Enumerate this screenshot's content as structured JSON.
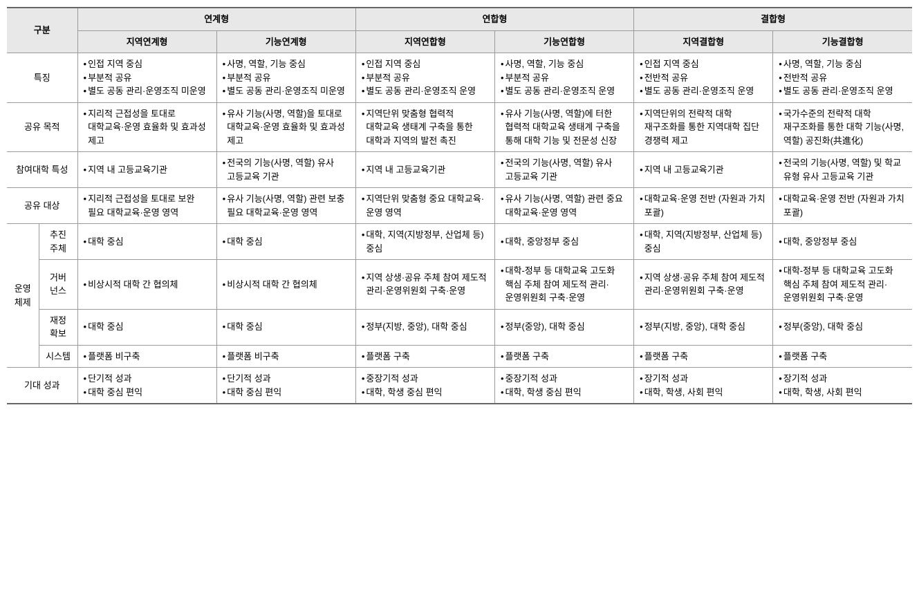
{
  "header": {
    "gubun": "구분",
    "group1": "연계형",
    "group2": "연합형",
    "group3": "결합형",
    "sub1": "지역연계형",
    "sub2": "기능연계형",
    "sub3": "지역연합형",
    "sub4": "기능연합형",
    "sub5": "지역결합형",
    "sub6": "기능결합형"
  },
  "rowLabels": {
    "r1": "특징",
    "r2": "공유 목적",
    "r3": "참여대학 특성",
    "r4": "공유 대상",
    "r5g": "운영\n체제",
    "r5a": "추진\n주체",
    "r5b": "거버\n넌스",
    "r5c": "재정\n확보",
    "r5d": "시스템",
    "r6": "기대 성과"
  },
  "cells": {
    "r1c1": [
      "인접 지역 중심",
      "부분적 공유",
      "별도 공동 관리·운영조직 미운영"
    ],
    "r1c2": [
      "사명, 역할, 기능 중심",
      "부분적 공유",
      "별도 공동 관리·운영조직 미운영"
    ],
    "r1c3": [
      "인접 지역 중심",
      "부분적 공유",
      "별도 공동 관리·운영조직 운영"
    ],
    "r1c4": [
      "사명, 역할, 기능 중심",
      "부분적 공유",
      "별도 공동 관리·운영조직 운영"
    ],
    "r1c5": [
      "인접 지역 중심",
      "전반적 공유",
      "별도 공동 관리·운영조직 운영"
    ],
    "r1c6": [
      "사명, 역할, 기능 중심",
      "전반적 공유",
      "별도 공동 관리·운영조직 운영"
    ],
    "r2c1": [
      "지리적 근접성을 토대로 대학교육·운영 효율화 및 효과성 제고"
    ],
    "r2c2": [
      "유사 기능(사명, 역할)을 토대로 대학교육·운영 효율화 및 효과성 제고"
    ],
    "r2c3": [
      "지역단위 맞춤형 협력적 대학교육 생태계 구축을 통한 대학과 지역의 발전 촉진"
    ],
    "r2c4": [
      "유사 기능(사명, 역할)에 터한 협력적 대학교육 생태계 구축을 통해 대학 기능 및 전문성 신장"
    ],
    "r2c5": [
      "지역단위의 전략적 대학 재구조화를 통한 지역대학 집단 경쟁력 제고"
    ],
    "r2c6": [
      "국가수준의 전략적 대학 재구조화를 통한 대학 기능(사명, 역할) 공진화(共進化)"
    ],
    "r3c1": [
      "지역 내 고등교육기관"
    ],
    "r3c2": [
      "전국의 기능(사명, 역할) 유사 고등교육 기관"
    ],
    "r3c3": [
      "지역 내 고등교육기관"
    ],
    "r3c4": [
      "전국의 기능(사명, 역할) 유사 고등교육 기관"
    ],
    "r3c5": [
      "지역 내 고등교육기관"
    ],
    "r3c6": [
      "전국의 기능(사명, 역할) 및 학교 유형 유사 고등교육 기관"
    ],
    "r4c1": [
      "지리적 근접성을 토대로 보완 필요 대학교육·운영 영역"
    ],
    "r4c2": [
      "유사 기능(사명, 역할) 관련 보충 필요 대학교육·운영 영역"
    ],
    "r4c3": [
      "지역단위 맞춤형 중요 대학교육·운영 영역"
    ],
    "r4c4": [
      "유사 기능(사명, 역할) 관련 중요 대학교육·운영 영역"
    ],
    "r4c5": [
      "대학교육·운영 전반 (자원과 가치 포괄)"
    ],
    "r4c6": [
      "대학교육·운영 전반 (자원과 가치 포괄)"
    ],
    "r5ac1": [
      "대학 중심"
    ],
    "r5ac2": [
      "대학 중심"
    ],
    "r5ac3": [
      "대학, 지역(지방정부, 산업체 등) 중심"
    ],
    "r5ac4": [
      "대학, 중앙정부 중심"
    ],
    "r5ac5": [
      "대학, 지역(지방정부, 산업체 등) 중심"
    ],
    "r5ac6": [
      "대학, 중앙정부 중심"
    ],
    "r5bc1": [
      "비상시적 대학 간 협의체"
    ],
    "r5bc2": [
      "비상시적 대학 간 협의체"
    ],
    "r5bc3": [
      "지역 상생·공유 주체 참여 제도적 관리·운영위원회 구축·운영"
    ],
    "r5bc4": [
      "대학-정부 등 대학교육 고도화 핵심 주체 참여 제도적 관리·운영위원회 구축·운영"
    ],
    "r5bc5": [
      "지역 상생·공유 주체 참여 제도적 관리·운영위원회 구축·운영"
    ],
    "r5bc6": [
      "대학-정부 등 대학교육 고도화 핵심 주체 참여 제도적 관리·운영위원회 구축·운영"
    ],
    "r5cc1": [
      "대학 중심"
    ],
    "r5cc2": [
      "대학 중심"
    ],
    "r5cc3": [
      "정부(지방, 중앙), 대학 중심"
    ],
    "r5cc4": [
      "정부(중앙), 대학 중심"
    ],
    "r5cc5": [
      "정부(지방, 중앙), 대학 중심"
    ],
    "r5cc6": [
      "정부(중앙), 대학 중심"
    ],
    "r5dc1": [
      "플랫폼 비구축"
    ],
    "r5dc2": [
      "플랫폼 비구축"
    ],
    "r5dc3": [
      "플랫폼 구축"
    ],
    "r5dc4": [
      "플랫폼 구축"
    ],
    "r5dc5": [
      "플랫폼 구축"
    ],
    "r5dc6": [
      "플랫폼 구축"
    ],
    "r6c1": [
      "단기적 성과",
      "대학 중심 편익"
    ],
    "r6c2": [
      "단기적 성과",
      "대학 중심 편익"
    ],
    "r6c3": [
      "중장기적 성과",
      "대학, 학생 중심 편익"
    ],
    "r6c4": [
      "중장기적 성과",
      "대학, 학생 중심 편익"
    ],
    "r6c5": [
      "장기적 성과",
      "대학, 학생, 사회 편익"
    ],
    "r6c6": [
      "장기적 성과",
      "대학, 학생, 사회 편익"
    ]
  }
}
